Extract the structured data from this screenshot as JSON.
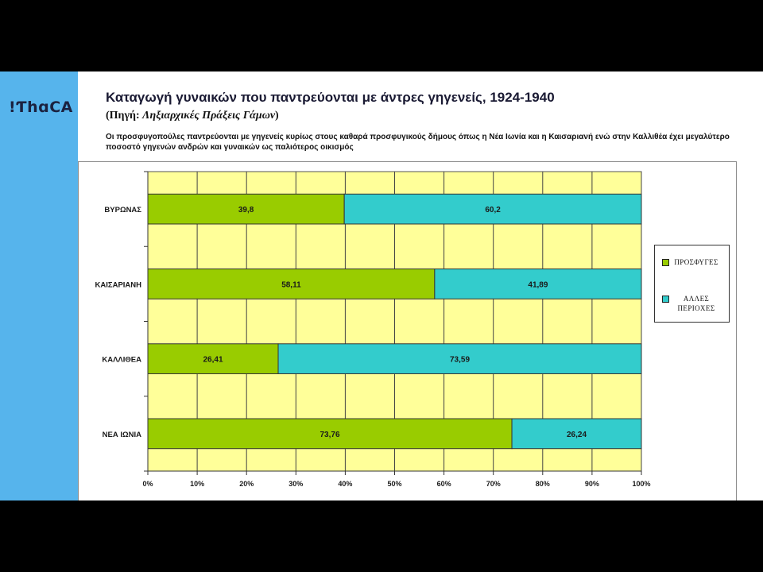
{
  "slide": {
    "logo_text": "!ƬhɑCA",
    "title": "Καταγωγή γυναικών που παντρεύονται με άντρες γηγενείς, 1924-1940",
    "source_prefix": "(Πηγή:",
    "source_text": "Ληξιαρχικές Πράξεις Γάμων",
    "source_suffix": ")",
    "description": "Οι προσφυγοπούλες παντρεύονται με γηγενείς κυρίως στους καθαρά προσφυγικούς δήμους  όπως η Νέα Ιωνία και η Καισαριανή ενώ στην Καλλιθέα έχει μεγαλύτερο ποσοστό γηγενών ανδρών και γυναικών ως παλιότερος οικισμός"
  },
  "colors": {
    "sidebar": "#56B4EC",
    "slide_background": "#FFFFFF",
    "frame_background": "#000000"
  },
  "chart_data": {
    "type": "bar",
    "orientation": "horizontal",
    "stacked": true,
    "categories": [
      "ΒΥΡΩΝΑΣ",
      "ΚΑΙΣΑΡΙΑΝΗ",
      "ΚΑΛΛΙΘΕΑ",
      "ΝΕΑ ΙΩΝΙΑ"
    ],
    "series": [
      {
        "name": "ΠΡΟΣΦΥΓΕΣ",
        "values": [
          39.8,
          58.11,
          26.41,
          73.76
        ],
        "color": "#99CC00"
      },
      {
        "name": "ΑΛΛΕΣ ΠΕΡΙΟΧΕΣ",
        "values": [
          60.2,
          41.89,
          73.59,
          26.24
        ],
        "color": "#33CCCC"
      }
    ],
    "xlim": [
      0,
      100
    ],
    "x_tick_labels": [
      "0%",
      "10%",
      "20%",
      "30%",
      "40%",
      "50%",
      "60%",
      "70%",
      "80%",
      "90%",
      "100%"
    ],
    "data_labels": true,
    "grid": {
      "vertical": true,
      "horizontal": false
    },
    "legend": "right",
    "plot_background": "#FFFF99"
  }
}
